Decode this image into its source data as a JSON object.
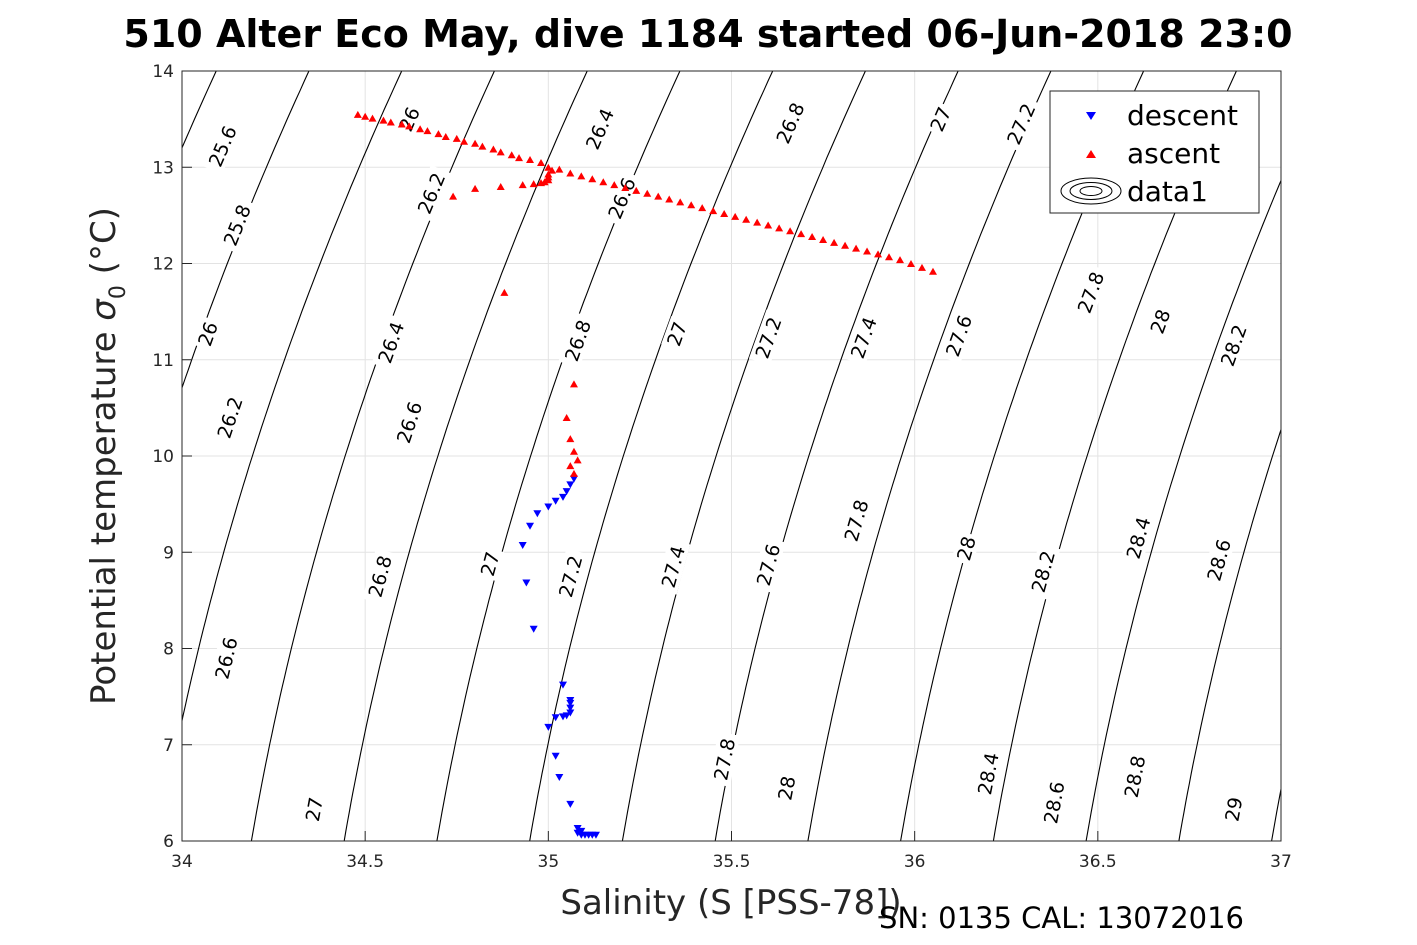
{
  "chart_data": {
    "type": "scatter",
    "title": "510 Alter Eco May, dive 1184 started 06-Jun-2018 23:0",
    "xlabel": "Salinity (S [PSS-78])",
    "ylabel_main": "Potential temperature ",
    "ylabel_symbol": "σ",
    "ylabel_sub": "0",
    "ylabel_unit": " (°C)",
    "footer": "SN: 0135  CAL: 13072016",
    "xlim": [
      34,
      37
    ],
    "ylim": [
      6,
      14
    ],
    "xticks": [
      34,
      34.5,
      35,
      35.5,
      36,
      36.5,
      37
    ],
    "yticks": [
      6,
      7,
      8,
      9,
      10,
      11,
      12,
      13,
      14
    ],
    "grid": true,
    "legend_position": "top-right",
    "contour_levels": [
      25.6,
      25.8,
      26,
      26.2,
      26.4,
      26.6,
      26.8,
      27,
      27.2,
      27.4,
      27.6,
      27.8,
      28,
      28.2,
      28.4,
      28.6,
      28.8,
      29
    ],
    "contour_labels": [
      {
        "text": "25.6",
        "s": 34.11,
        "t": 13.22
      },
      {
        "text": "25.8",
        "s": 34.15,
        "t": 12.4
      },
      {
        "text": "26",
        "s": 34.07,
        "t": 11.27
      },
      {
        "text": "26.2",
        "s": 34.13,
        "t": 10.4
      },
      {
        "text": "26.6",
        "s": 34.12,
        "t": 7.9
      },
      {
        "text": "27",
        "s": 34.36,
        "t": 6.33
      },
      {
        "text": "26",
        "s": 34.62,
        "t": 13.5
      },
      {
        "text": "26.2",
        "s": 34.68,
        "t": 12.73
      },
      {
        "text": "26.4",
        "s": 34.57,
        "t": 11.18
      },
      {
        "text": "26.6",
        "s": 34.62,
        "t": 10.35
      },
      {
        "text": "26.8",
        "s": 34.54,
        "t": 8.75
      },
      {
        "text": "27",
        "s": 34.84,
        "t": 8.88
      },
      {
        "text": "26.4",
        "s": 35.14,
        "t": 13.4
      },
      {
        "text": "26.6",
        "s": 35.2,
        "t": 12.68
      },
      {
        "text": "26.8",
        "s": 35.08,
        "t": 11.2
      },
      {
        "text": "27.2",
        "s": 35.06,
        "t": 8.75
      },
      {
        "text": "26.8",
        "s": 35.66,
        "t": 13.46
      },
      {
        "text": "27",
        "s": 35.35,
        "t": 11.27
      },
      {
        "text": "27.4",
        "s": 35.34,
        "t": 8.85
      },
      {
        "text": "27",
        "s": 36.07,
        "t": 13.5
      },
      {
        "text": "27.2",
        "s": 35.6,
        "t": 11.23
      },
      {
        "text": "27.6",
        "s": 35.6,
        "t": 8.87
      },
      {
        "text": "27.8",
        "s": 35.48,
        "t": 6.85
      },
      {
        "text": "27.2",
        "s": 36.29,
        "t": 13.45
      },
      {
        "text": "27.4",
        "s": 35.86,
        "t": 11.23
      },
      {
        "text": "27.8",
        "s": 35.84,
        "t": 9.33
      },
      {
        "text": "28",
        "s": 35.65,
        "t": 6.55
      },
      {
        "text": "27.6",
        "s": 36.12,
        "t": 11.25
      },
      {
        "text": "28",
        "s": 36.14,
        "t": 9.04
      },
      {
        "text": "28.4",
        "s": 36.2,
        "t": 6.7
      },
      {
        "text": "27.8",
        "s": 36.48,
        "t": 11.7
      },
      {
        "text": "28.2",
        "s": 36.35,
        "t": 8.8
      },
      {
        "text": "28.6",
        "s": 36.38,
        "t": 6.4
      },
      {
        "text": "28",
        "s": 36.67,
        "t": 11.4
      },
      {
        "text": "28.4",
        "s": 36.61,
        "t": 9.15
      },
      {
        "text": "28.8",
        "s": 36.6,
        "t": 6.67
      },
      {
        "text": "28.2",
        "s": 36.87,
        "t": 11.15
      },
      {
        "text": "28.6",
        "s": 36.83,
        "t": 8.92
      },
      {
        "text": "29",
        "s": 36.87,
        "t": 6.33
      }
    ],
    "series": [
      {
        "name": "descent",
        "marker": "triangle-down",
        "color": "#0000ff",
        "points": [
          [
            35.08,
            6.08
          ],
          [
            35.09,
            6.06
          ],
          [
            35.1,
            6.06
          ],
          [
            35.11,
            6.06
          ],
          [
            35.12,
            6.06
          ],
          [
            35.13,
            6.06
          ],
          [
            35.08,
            6.13
          ],
          [
            35.09,
            6.1
          ],
          [
            35.06,
            6.38
          ],
          [
            35.03,
            6.66
          ],
          [
            35.02,
            6.88
          ],
          [
            35.0,
            7.18
          ],
          [
            35.02,
            7.28
          ],
          [
            35.04,
            7.29
          ],
          [
            35.05,
            7.3
          ],
          [
            35.06,
            7.33
          ],
          [
            35.06,
            7.38
          ],
          [
            35.06,
            7.43
          ],
          [
            35.06,
            7.46
          ],
          [
            35.04,
            7.62
          ],
          [
            34.96,
            8.2
          ],
          [
            34.94,
            8.68
          ],
          [
            34.93,
            9.07
          ],
          [
            34.95,
            9.27
          ],
          [
            34.97,
            9.4
          ],
          [
            35.0,
            9.47
          ],
          [
            35.02,
            9.53
          ],
          [
            35.04,
            9.57
          ],
          [
            35.05,
            9.63
          ],
          [
            35.06,
            9.7
          ],
          [
            35.07,
            9.76
          ]
        ]
      },
      {
        "name": "ascent",
        "marker": "triangle-up",
        "color": "#ff0000",
        "points": [
          [
            35.07,
            9.82
          ],
          [
            35.06,
            9.9
          ],
          [
            35.08,
            9.96
          ],
          [
            35.07,
            10.05
          ],
          [
            35.06,
            10.18
          ],
          [
            35.05,
            10.4
          ],
          [
            35.07,
            10.75
          ],
          [
            34.88,
            11.7
          ],
          [
            34.74,
            12.7
          ],
          [
            34.8,
            12.78
          ],
          [
            34.87,
            12.8
          ],
          [
            34.93,
            12.82
          ],
          [
            34.96,
            12.83
          ],
          [
            34.98,
            12.84
          ],
          [
            34.99,
            12.85
          ],
          [
            35.0,
            12.87
          ],
          [
            35.0,
            12.9
          ],
          [
            35.0,
            12.93
          ],
          [
            35.01,
            12.97
          ],
          [
            35.0,
            13.0
          ],
          [
            34.48,
            13.55
          ],
          [
            34.5,
            13.53
          ],
          [
            34.52,
            13.51
          ],
          [
            34.55,
            13.49
          ],
          [
            34.57,
            13.47
          ],
          [
            34.6,
            13.45
          ],
          [
            34.62,
            13.43
          ],
          [
            34.65,
            13.4
          ],
          [
            34.67,
            13.38
          ],
          [
            34.7,
            13.35
          ],
          [
            34.72,
            13.32
          ],
          [
            34.75,
            13.3
          ],
          [
            34.77,
            13.27
          ],
          [
            34.8,
            13.25
          ],
          [
            34.82,
            13.22
          ],
          [
            34.85,
            13.19
          ],
          [
            34.87,
            13.16
          ],
          [
            34.9,
            13.13
          ],
          [
            34.92,
            13.1
          ],
          [
            34.95,
            13.08
          ],
          [
            34.98,
            13.05
          ],
          [
            35.03,
            12.98
          ],
          [
            35.06,
            12.94
          ],
          [
            35.09,
            12.91
          ],
          [
            35.12,
            12.88
          ],
          [
            35.15,
            12.85
          ],
          [
            35.18,
            12.82
          ],
          [
            35.21,
            12.79
          ],
          [
            35.24,
            12.76
          ],
          [
            35.27,
            12.73
          ],
          [
            35.3,
            12.7
          ],
          [
            35.33,
            12.67
          ],
          [
            35.36,
            12.64
          ],
          [
            35.39,
            12.61
          ],
          [
            35.42,
            12.58
          ],
          [
            35.45,
            12.55
          ],
          [
            35.48,
            12.52
          ],
          [
            35.51,
            12.49
          ],
          [
            35.54,
            12.46
          ],
          [
            35.57,
            12.43
          ],
          [
            35.6,
            12.4
          ],
          [
            35.63,
            12.37
          ],
          [
            35.66,
            12.34
          ],
          [
            35.69,
            12.31
          ],
          [
            35.72,
            12.28
          ],
          [
            35.75,
            12.25
          ],
          [
            35.78,
            12.22
          ],
          [
            35.81,
            12.19
          ],
          [
            35.84,
            12.16
          ],
          [
            35.87,
            12.13
          ],
          [
            35.9,
            12.1
          ],
          [
            35.93,
            12.07
          ],
          [
            35.96,
            12.04
          ],
          [
            35.99,
            12.0
          ],
          [
            36.02,
            11.96
          ],
          [
            36.05,
            11.92
          ]
        ]
      }
    ],
    "legend": [
      {
        "label": "descent"
      },
      {
        "label": "ascent"
      },
      {
        "label": "data1"
      }
    ]
  }
}
